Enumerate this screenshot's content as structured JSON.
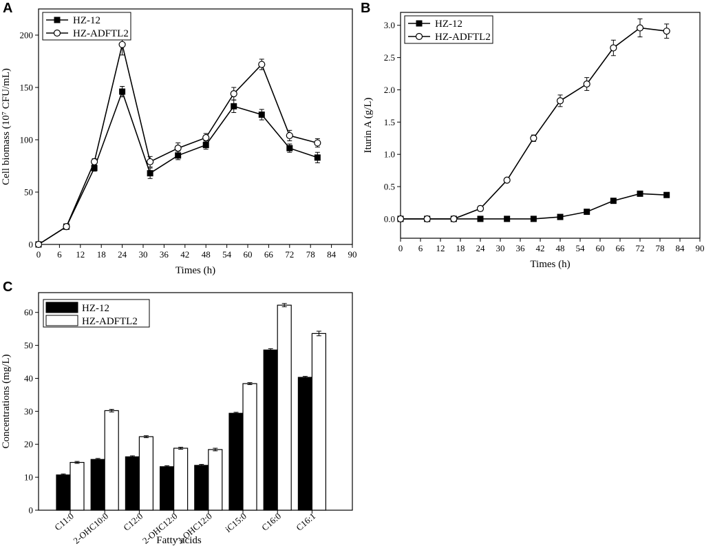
{
  "colors": {
    "ink": "#000000",
    "paper": "#ffffff"
  },
  "panels": {
    "a": "A",
    "b": "B",
    "c": "C"
  },
  "chart_data": [
    {
      "id": "A",
      "type": "line",
      "title": "",
      "xlabel": "Times (h)",
      "ylabel": "Cell biomass (10⁷ CFU/mL)",
      "xlim": [
        0,
        90
      ],
      "ylim": [
        0,
        225
      ],
      "xticks": [
        0,
        6,
        12,
        18,
        24,
        30,
        36,
        42,
        48,
        54,
        60,
        66,
        72,
        78,
        84,
        90
      ],
      "yticks": [
        0,
        50,
        100,
        150,
        200
      ],
      "legend_position": "top-left",
      "series": [
        {
          "name": "HZ-12",
          "marker": "filled-square",
          "x": [
            0,
            8,
            16,
            24,
            32,
            40,
            48,
            56,
            64,
            72,
            80
          ],
          "y": [
            0,
            17,
            73,
            146,
            68,
            85,
            95,
            132,
            124,
            92,
            83
          ],
          "err": [
            0,
            2,
            3,
            5,
            5,
            4,
            4,
            6,
            5,
            4,
            5
          ]
        },
        {
          "name": "HZ-ADFTL2",
          "marker": "open-circle",
          "x": [
            0,
            8,
            16,
            24,
            32,
            40,
            48,
            56,
            64,
            72,
            80
          ],
          "y": [
            0,
            17,
            79,
            191,
            79,
            92,
            102,
            144,
            172,
            104,
            97
          ],
          "err": [
            0,
            2,
            3,
            10,
            5,
            5,
            4,
            6,
            5,
            5,
            4
          ]
        }
      ]
    },
    {
      "id": "B",
      "type": "line",
      "title": "",
      "xlabel": "Times (h)",
      "ylabel": "Iturin A (g/L)",
      "xlim": [
        0,
        90
      ],
      "ylim": [
        -0.3,
        3.2
      ],
      "xticks": [
        0,
        6,
        12,
        18,
        24,
        30,
        36,
        42,
        48,
        54,
        60,
        66,
        72,
        78,
        84,
        90
      ],
      "yticks": [
        "0.0",
        "0.5",
        "1.0",
        "1.5",
        "2.0",
        "2.5",
        "3.0"
      ],
      "legend_position": "top-left",
      "series": [
        {
          "name": "HZ-12",
          "marker": "filled-square",
          "x": [
            0,
            8,
            16,
            24,
            32,
            40,
            48,
            56,
            64,
            72,
            80
          ],
          "y": [
            0,
            0,
            0,
            0,
            0,
            0,
            0.03,
            0.11,
            0.28,
            0.39,
            0.37
          ],
          "err": [
            0,
            0,
            0,
            0,
            0,
            0,
            0.01,
            0.02,
            0.02,
            0.02,
            0.02
          ]
        },
        {
          "name": "HZ-ADFTL2",
          "marker": "open-circle",
          "x": [
            0,
            8,
            16,
            24,
            32,
            40,
            48,
            56,
            64,
            72,
            80
          ],
          "y": [
            0,
            0,
            0,
            0.16,
            0.6,
            1.25,
            1.83,
            2.09,
            2.65,
            2.96,
            2.91
          ],
          "err": [
            0,
            0,
            0,
            0.04,
            0.03,
            0.05,
            0.09,
            0.1,
            0.12,
            0.14,
            0.11
          ]
        }
      ]
    },
    {
      "id": "C",
      "type": "bar",
      "title": "",
      "xlabel": "Fatty acids",
      "ylabel": "Concentrations (mg/L)",
      "ylim": [
        0,
        66
      ],
      "yticks": [
        0,
        10,
        20,
        30,
        40,
        50,
        60
      ],
      "legend_position": "top-left",
      "categories": [
        "C11:0",
        "2-OHC10:0",
        "C12:0",
        "2-OHC12:0",
        "3-OHC12:0",
        "iC15:0",
        "C16:0",
        "C16:1"
      ],
      "series": [
        {
          "name": "HZ-12",
          "fill": "black",
          "values": [
            10.7,
            15.4,
            16.2,
            13.2,
            13.6,
            29.4,
            48.6,
            40.3
          ],
          "err": [
            0.3,
            0.3,
            0.3,
            0.3,
            0.3,
            0.3,
            0.4,
            0.3
          ]
        },
        {
          "name": "HZ-ADFTL2",
          "fill": "white",
          "values": [
            14.5,
            30.2,
            22.3,
            18.8,
            18.4,
            38.4,
            62.2,
            53.6
          ],
          "err": [
            0.3,
            0.4,
            0.3,
            0.3,
            0.4,
            0.3,
            0.5,
            0.7
          ]
        }
      ]
    }
  ]
}
